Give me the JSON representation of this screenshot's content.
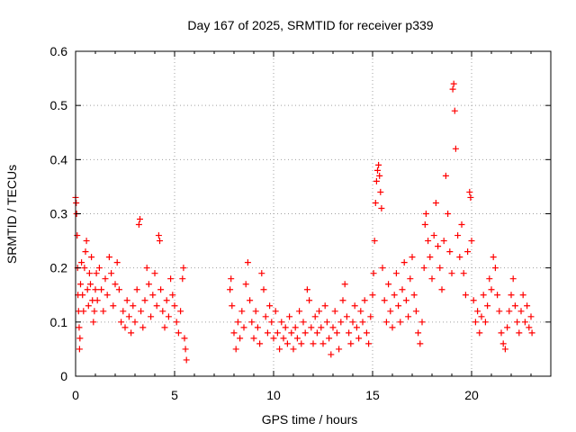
{
  "chart_data": {
    "type": "scatter",
    "title": "Day 167 of 2025, SRMTID for receiver p339",
    "xlabel": "GPS time / hours",
    "ylabel": "SRMTID / TECUs",
    "xlim": [
      0,
      24
    ],
    "ylim": [
      0,
      0.6
    ],
    "xticks": [
      0,
      5,
      10,
      15,
      20
    ],
    "xtick_labels": [
      "0",
      "5",
      "10",
      "15",
      "20"
    ],
    "yticks": [
      0,
      0.1,
      0.2,
      0.3,
      0.4,
      0.5,
      0.6
    ],
    "ytick_labels": [
      "0",
      "0.1",
      "0.2",
      "0.3",
      "0.4",
      "0.5",
      "0.6"
    ],
    "grid": true,
    "marker": "+",
    "color": "#ff0000",
    "series": [
      {
        "name": "SRMTID",
        "points": [
          [
            0.0,
            0.33
          ],
          [
            0.03,
            0.32
          ],
          [
            0.05,
            0.3
          ],
          [
            0.08,
            0.26
          ],
          [
            0.1,
            0.2
          ],
          [
            0.12,
            0.15
          ],
          [
            0.15,
            0.12
          ],
          [
            0.18,
            0.09
          ],
          [
            0.2,
            0.05
          ],
          [
            0.22,
            0.07
          ],
          [
            0.25,
            0.17
          ],
          [
            0.3,
            0.21
          ],
          [
            0.35,
            0.15
          ],
          [
            0.4,
            0.12
          ],
          [
            0.45,
            0.2
          ],
          [
            0.5,
            0.23
          ],
          [
            0.55,
            0.25
          ],
          [
            0.6,
            0.16
          ],
          [
            0.65,
            0.13
          ],
          [
            0.7,
            0.19
          ],
          [
            0.75,
            0.17
          ],
          [
            0.8,
            0.22
          ],
          [
            0.85,
            0.14
          ],
          [
            0.9,
            0.1
          ],
          [
            0.95,
            0.12
          ],
          [
            1.0,
            0.16
          ],
          [
            1.05,
            0.19
          ],
          [
            1.1,
            0.14
          ],
          [
            1.2,
            0.2
          ],
          [
            1.3,
            0.16
          ],
          [
            1.4,
            0.12
          ],
          [
            1.5,
            0.18
          ],
          [
            1.6,
            0.15
          ],
          [
            1.7,
            0.22
          ],
          [
            1.8,
            0.19
          ],
          [
            1.9,
            0.13
          ],
          [
            2.0,
            0.17
          ],
          [
            2.1,
            0.21
          ],
          [
            2.2,
            0.16
          ],
          [
            2.3,
            0.1
          ],
          [
            2.4,
            0.12
          ],
          [
            2.5,
            0.09
          ],
          [
            2.6,
            0.14
          ],
          [
            2.7,
            0.11
          ],
          [
            2.8,
            0.08
          ],
          [
            2.9,
            0.13
          ],
          [
            3.0,
            0.1
          ],
          [
            3.1,
            0.16
          ],
          [
            3.2,
            0.28
          ],
          [
            3.25,
            0.29
          ],
          [
            3.3,
            0.12
          ],
          [
            3.4,
            0.09
          ],
          [
            3.5,
            0.14
          ],
          [
            3.6,
            0.2
          ],
          [
            3.7,
            0.17
          ],
          [
            3.8,
            0.11
          ],
          [
            3.9,
            0.15
          ],
          [
            4.0,
            0.19
          ],
          [
            4.1,
            0.13
          ],
          [
            4.2,
            0.26
          ],
          [
            4.25,
            0.25
          ],
          [
            4.3,
            0.16
          ],
          [
            4.4,
            0.12
          ],
          [
            4.5,
            0.09
          ],
          [
            4.6,
            0.14
          ],
          [
            4.7,
            0.11
          ],
          [
            4.8,
            0.18
          ],
          [
            4.9,
            0.15
          ],
          [
            5.0,
            0.13
          ],
          [
            5.1,
            0.1
          ],
          [
            5.2,
            0.08
          ],
          [
            5.3,
            0.12
          ],
          [
            5.4,
            0.18
          ],
          [
            5.45,
            0.2
          ],
          [
            5.5,
            0.07
          ],
          [
            5.55,
            0.05
          ],
          [
            5.6,
            0.03
          ],
          [
            7.8,
            0.16
          ],
          [
            7.85,
            0.18
          ],
          [
            7.9,
            0.13
          ],
          [
            8.0,
            0.08
          ],
          [
            8.1,
            0.05
          ],
          [
            8.2,
            0.1
          ],
          [
            8.3,
            0.07
          ],
          [
            8.4,
            0.12
          ],
          [
            8.5,
            0.09
          ],
          [
            8.6,
            0.17
          ],
          [
            8.7,
            0.21
          ],
          [
            8.8,
            0.14
          ],
          [
            8.9,
            0.1
          ],
          [
            9.0,
            0.07
          ],
          [
            9.1,
            0.12
          ],
          [
            9.2,
            0.09
          ],
          [
            9.3,
            0.06
          ],
          [
            9.4,
            0.19
          ],
          [
            9.5,
            0.16
          ],
          [
            9.6,
            0.11
          ],
          [
            9.7,
            0.08
          ],
          [
            9.8,
            0.13
          ],
          [
            9.9,
            0.1
          ],
          [
            10.0,
            0.07
          ],
          [
            10.1,
            0.12
          ],
          [
            10.2,
            0.08
          ],
          [
            10.3,
            0.05
          ],
          [
            10.4,
            0.1
          ],
          [
            10.5,
            0.07
          ],
          [
            10.6,
            0.09
          ],
          [
            10.7,
            0.06
          ],
          [
            10.8,
            0.11
          ],
          [
            10.9,
            0.08
          ],
          [
            11.0,
            0.05
          ],
          [
            11.1,
            0.09
          ],
          [
            11.2,
            0.07
          ],
          [
            11.3,
            0.12
          ],
          [
            11.4,
            0.06
          ],
          [
            11.5,
            0.1
          ],
          [
            11.6,
            0.08
          ],
          [
            11.7,
            0.16
          ],
          [
            11.8,
            0.14
          ],
          [
            11.9,
            0.09
          ],
          [
            12.0,
            0.06
          ],
          [
            12.1,
            0.11
          ],
          [
            12.2,
            0.08
          ],
          [
            12.3,
            0.12
          ],
          [
            12.4,
            0.09
          ],
          [
            12.5,
            0.06
          ],
          [
            12.6,
            0.13
          ],
          [
            12.7,
            0.1
          ],
          [
            12.8,
            0.07
          ],
          [
            12.9,
            0.04
          ],
          [
            13.0,
            0.09
          ],
          [
            13.1,
            0.12
          ],
          [
            13.2,
            0.08
          ],
          [
            13.3,
            0.05
          ],
          [
            13.4,
            0.1
          ],
          [
            13.5,
            0.14
          ],
          [
            13.6,
            0.17
          ],
          [
            13.7,
            0.11
          ],
          [
            13.8,
            0.08
          ],
          [
            13.9,
            0.06
          ],
          [
            14.0,
            0.1
          ],
          [
            14.1,
            0.13
          ],
          [
            14.2,
            0.09
          ],
          [
            14.3,
            0.07
          ],
          [
            14.4,
            0.12
          ],
          [
            14.5,
            0.1
          ],
          [
            14.6,
            0.14
          ],
          [
            14.7,
            0.08
          ],
          [
            14.8,
            0.06
          ],
          [
            14.9,
            0.11
          ],
          [
            15.0,
            0.15
          ],
          [
            15.05,
            0.19
          ],
          [
            15.1,
            0.25
          ],
          [
            15.15,
            0.32
          ],
          [
            15.2,
            0.36
          ],
          [
            15.25,
            0.38
          ],
          [
            15.3,
            0.39
          ],
          [
            15.35,
            0.37
          ],
          [
            15.4,
            0.34
          ],
          [
            15.45,
            0.31
          ],
          [
            15.5,
            0.2
          ],
          [
            15.6,
            0.14
          ],
          [
            15.7,
            0.1
          ],
          [
            15.8,
            0.17
          ],
          [
            15.9,
            0.12
          ],
          [
            16.0,
            0.09
          ],
          [
            16.1,
            0.15
          ],
          [
            16.2,
            0.19
          ],
          [
            16.3,
            0.13
          ],
          [
            16.4,
            0.1
          ],
          [
            16.5,
            0.16
          ],
          [
            16.6,
            0.21
          ],
          [
            16.7,
            0.14
          ],
          [
            16.8,
            0.11
          ],
          [
            16.9,
            0.18
          ],
          [
            17.0,
            0.22
          ],
          [
            17.1,
            0.15
          ],
          [
            17.2,
            0.12
          ],
          [
            17.3,
            0.08
          ],
          [
            17.4,
            0.06
          ],
          [
            17.5,
            0.1
          ],
          [
            17.6,
            0.2
          ],
          [
            17.65,
            0.28
          ],
          [
            17.7,
            0.3
          ],
          [
            17.8,
            0.25
          ],
          [
            17.9,
            0.22
          ],
          [
            18.0,
            0.18
          ],
          [
            18.1,
            0.26
          ],
          [
            18.2,
            0.32
          ],
          [
            18.3,
            0.24
          ],
          [
            18.4,
            0.2
          ],
          [
            18.5,
            0.16
          ],
          [
            18.6,
            0.25
          ],
          [
            18.7,
            0.37
          ],
          [
            18.8,
            0.3
          ],
          [
            18.9,
            0.23
          ],
          [
            19.0,
            0.19
          ],
          [
            19.05,
            0.53
          ],
          [
            19.1,
            0.54
          ],
          [
            19.15,
            0.49
          ],
          [
            19.2,
            0.42
          ],
          [
            19.3,
            0.26
          ],
          [
            19.4,
            0.22
          ],
          [
            19.5,
            0.28
          ],
          [
            19.6,
            0.19
          ],
          [
            19.7,
            0.15
          ],
          [
            19.8,
            0.23
          ],
          [
            19.9,
            0.34
          ],
          [
            19.95,
            0.33
          ],
          [
            20.0,
            0.25
          ],
          [
            20.1,
            0.14
          ],
          [
            20.2,
            0.1
          ],
          [
            20.3,
            0.12
          ],
          [
            20.4,
            0.08
          ],
          [
            20.5,
            0.11
          ],
          [
            20.6,
            0.15
          ],
          [
            20.7,
            0.1
          ],
          [
            20.8,
            0.13
          ],
          [
            20.9,
            0.18
          ],
          [
            21.0,
            0.16
          ],
          [
            21.1,
            0.22
          ],
          [
            21.2,
            0.2
          ],
          [
            21.3,
            0.15
          ],
          [
            21.4,
            0.12
          ],
          [
            21.5,
            0.08
          ],
          [
            21.6,
            0.06
          ],
          [
            21.7,
            0.05
          ],
          [
            21.8,
            0.09
          ],
          [
            21.9,
            0.12
          ],
          [
            22.0,
            0.15
          ],
          [
            22.1,
            0.18
          ],
          [
            22.2,
            0.13
          ],
          [
            22.3,
            0.1
          ],
          [
            22.4,
            0.08
          ],
          [
            22.5,
            0.12
          ],
          [
            22.6,
            0.15
          ],
          [
            22.7,
            0.1
          ],
          [
            22.8,
            0.13
          ],
          [
            22.9,
            0.09
          ],
          [
            23.0,
            0.11
          ],
          [
            23.05,
            0.08
          ]
        ]
      }
    ]
  }
}
